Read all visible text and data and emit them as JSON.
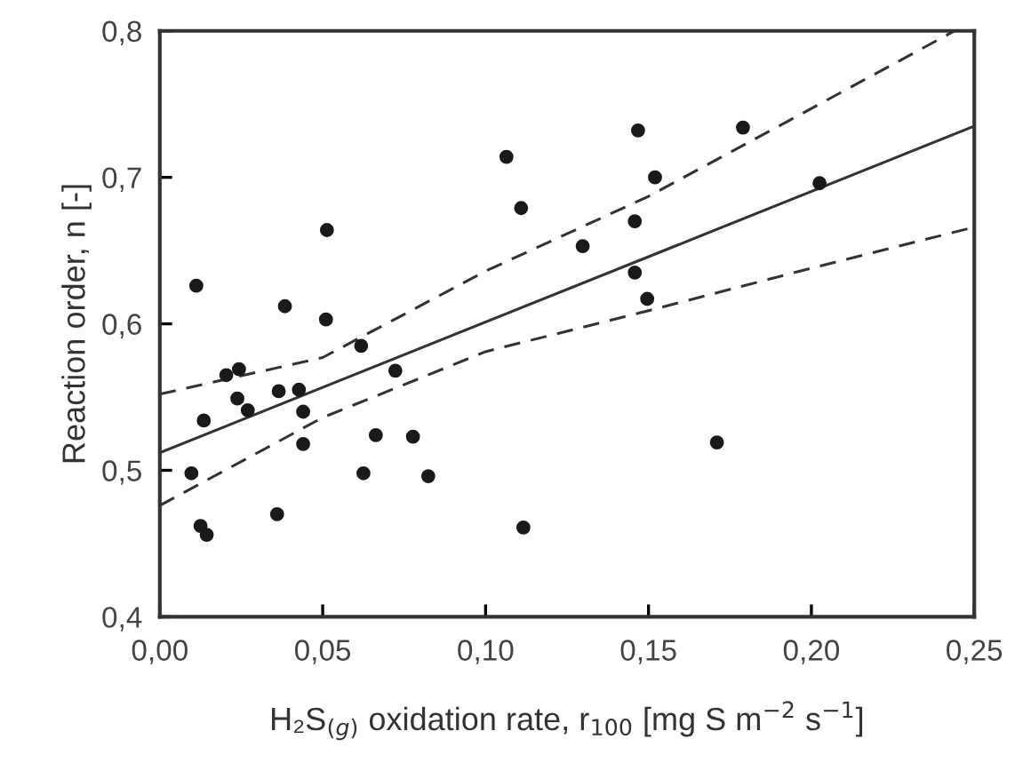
{
  "chart_data": {
    "type": "scatter",
    "xlabel": "H₂S$_{(g)}$ oxidation rate, r$_{100}$ [mg S m$^{−2}$ s$^{−1}$]",
    "ylabel": "Reaction order, n [-]",
    "xlim": [
      0,
      0.25
    ],
    "ylim": [
      0.4,
      0.8
    ],
    "xticks": [
      {
        "value": 0,
        "label": "0,00"
      },
      {
        "value": 0.05,
        "label": "0,05"
      },
      {
        "value": 0.1,
        "label": "0,10"
      },
      {
        "value": 0.15,
        "label": "0,15"
      },
      {
        "value": 0.2,
        "label": "0,20"
      },
      {
        "value": 0.25,
        "label": "0,25"
      }
    ],
    "yticks": [
      {
        "value": 0.4,
        "label": "0,4"
      },
      {
        "value": 0.5,
        "label": "0,5"
      },
      {
        "value": 0.6,
        "label": "0,6"
      },
      {
        "value": 0.7,
        "label": "0,7"
      },
      {
        "value": 0.8,
        "label": "0,8"
      }
    ],
    "grid": false,
    "legend": false,
    "series": [
      {
        "color": "#1a1a1a",
        "marker": "circle",
        "x": [
          0.0097,
          0.0112,
          0.0135,
          0.0125,
          0.0144,
          0.0204,
          0.0243,
          0.0238,
          0.027,
          0.036,
          0.0365,
          0.0384,
          0.0427,
          0.044,
          0.044,
          0.051,
          0.0513,
          0.0618,
          0.0625,
          0.0663,
          0.0723,
          0.0777,
          0.0824,
          0.1064,
          0.1109,
          0.1116,
          0.1298,
          0.1468,
          0.1458,
          0.1458,
          0.152,
          0.1496,
          0.171,
          0.179,
          0.2025
        ],
        "values": [
          0.498,
          0.626,
          0.534,
          0.462,
          0.456,
          0.565,
          0.569,
          0.549,
          0.541,
          0.47,
          0.554,
          0.612,
          0.555,
          0.54,
          0.518,
          0.603,
          0.664,
          0.585,
          0.498,
          0.524,
          0.568,
          0.523,
          0.496,
          0.714,
          0.679,
          0.461,
          0.653,
          0.732,
          0.67,
          0.635,
          0.7,
          0.617,
          0.519,
          0.734,
          0.696
        ]
      },
      {
        "type": "line",
        "color": "#333333",
        "line_style": "solid",
        "marker": "none",
        "x": [
          0,
          0.25
        ],
        "values": [
          0.512,
          0.735
        ]
      },
      {
        "type": "line",
        "color": "#333333",
        "line_style": "dashed",
        "marker": "none",
        "x": [
          0,
          0.05,
          0.1,
          0.15,
          0.2,
          0.244
        ],
        "values": [
          0.552,
          0.577,
          0.636,
          0.687,
          0.747,
          0.8
        ]
      },
      {
        "type": "line",
        "color": "#333333",
        "line_style": "dashed",
        "marker": "none",
        "x": [
          0,
          0.05,
          0.1,
          0.15,
          0.2,
          0.25
        ],
        "values": [
          0.476,
          0.536,
          0.581,
          0.609,
          0.638,
          0.666
        ]
      }
    ]
  }
}
